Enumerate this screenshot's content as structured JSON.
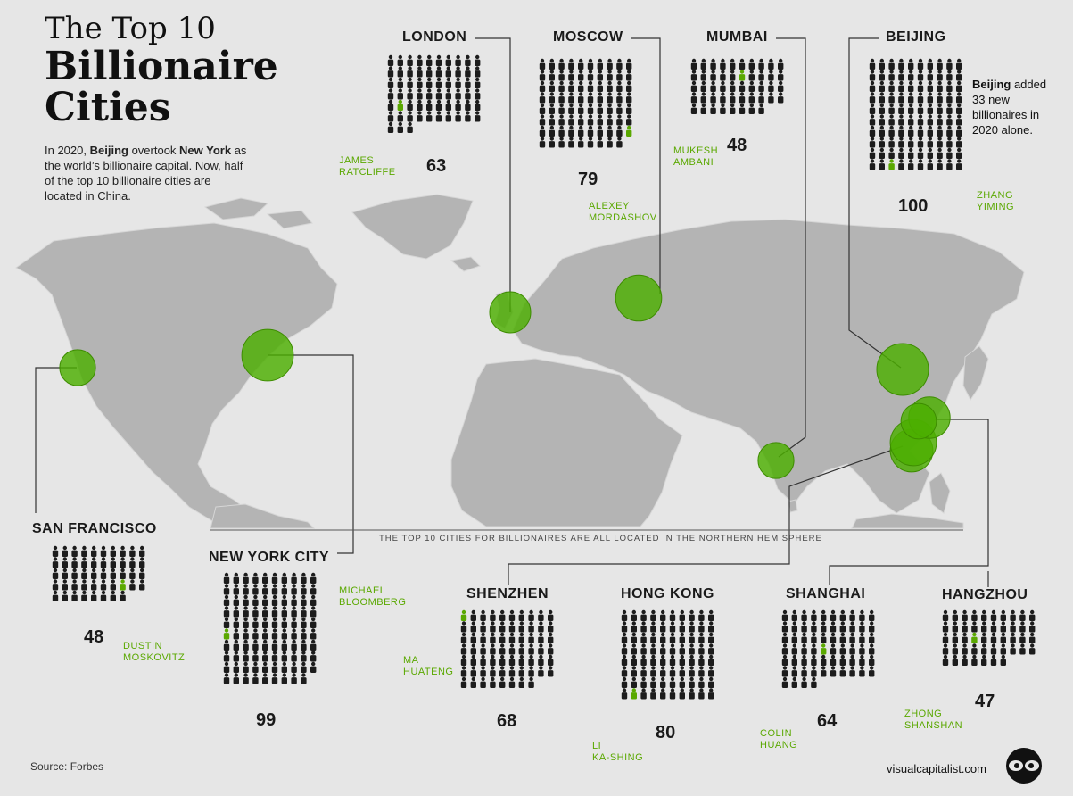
{
  "title": {
    "line1": "The Top 10",
    "line2": "Billionaire",
    "line3": "Cities"
  },
  "intro": {
    "p1": "In 2020, ",
    "b1": "Beijing",
    "p2": " overtook ",
    "b2": "New York",
    "p3": " as the world’s billionaire capital. Now, half of the top 10 billionaire cities are located in China."
  },
  "beijing_note": {
    "bold": "Beijing",
    "text": " added 33 new billionaires in 2020 alone."
  },
  "hemisphere_note": "THE TOP 10 CITIES FOR BILLIONAIRES ARE ALL LOCATED IN THE NORTHERN HEMISPHERE",
  "source": "Source: Forbes",
  "brand": "visualcapitalist.com",
  "colors": {
    "accent": "#5aa800",
    "bubble": "#4caf00",
    "map": "#b4b4b4",
    "background": "#e6e6e6",
    "figure": "#1c1c1c"
  },
  "cities": [
    {
      "id": "london",
      "name": "LONDON",
      "count": "63",
      "billionaires": 63,
      "person_line1": "JAMES",
      "person_line2": "RATCLIFFE"
    },
    {
      "id": "moscow",
      "name": "MOSCOW",
      "count": "79",
      "billionaires": 79,
      "person_line1": "ALEXEY",
      "person_line2": "MORDASHOV"
    },
    {
      "id": "mumbai",
      "name": "MUMBAI",
      "count": "48",
      "billionaires": 48,
      "person_line1": "MUKESH",
      "person_line2": "AMBANI"
    },
    {
      "id": "beijing",
      "name": "BEIJING",
      "count": "100",
      "billionaires": 100,
      "person_line1": "ZHANG",
      "person_line2": "YIMING"
    },
    {
      "id": "sanfrancisco",
      "name": "SAN FRANCISCO",
      "count": "48",
      "billionaires": 48,
      "person_line1": "DUSTIN",
      "person_line2": "MOSKOVITZ"
    },
    {
      "id": "newyork",
      "name": "NEW YORK CITY",
      "count": "99",
      "billionaires": 99,
      "person_line1": "MICHAEL",
      "person_line2": "BLOOMBERG"
    },
    {
      "id": "shenzhen",
      "name": "SHENZHEN",
      "count": "68",
      "billionaires": 68,
      "person_line1": "MA",
      "person_line2": "HUATENG"
    },
    {
      "id": "hongkong",
      "name": "HONG KONG",
      "count": "80",
      "billionaires": 80,
      "person_line1": "LI",
      "person_line2": "KA-SHING"
    },
    {
      "id": "shanghai",
      "name": "SHANGHAI",
      "count": "64",
      "billionaires": 64,
      "person_line1": "COLIN",
      "person_line2": "HUANG"
    },
    {
      "id": "hangzhou",
      "name": "HANGZHOU",
      "count": "47",
      "billionaires": 47,
      "person_line1": "ZHONG",
      "person_line2": "SHANSHAN"
    }
  ]
}
